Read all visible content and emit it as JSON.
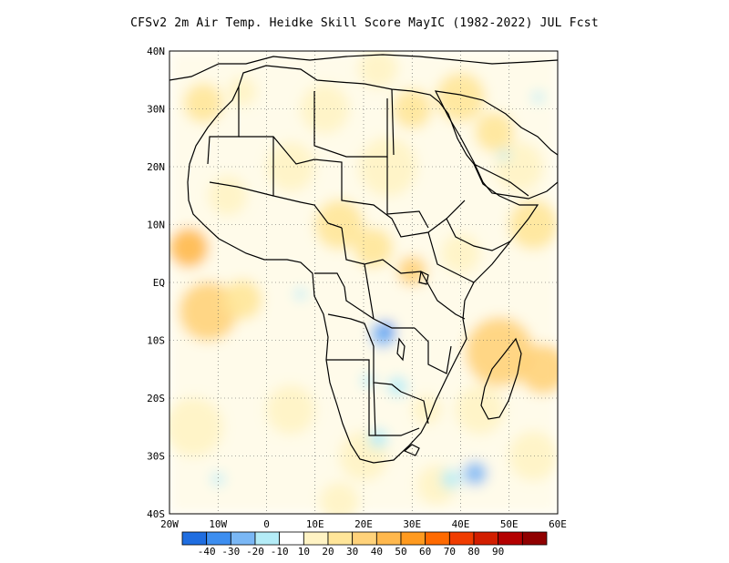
{
  "title": "CFSv2 2m Air Temp. Heidke Skill Score MayIC (1982-2022) JUL Fcst",
  "map": {
    "region": "Africa",
    "lon_range": [
      -20,
      60
    ],
    "lat_range": [
      -40,
      40
    ],
    "gridlines": "dotted",
    "y_ticks": [
      "40N",
      "30N",
      "20N",
      "10N",
      "EQ",
      "10S",
      "20S",
      "30S",
      "40S"
    ],
    "x_ticks": [
      "20W",
      "10W",
      "0",
      "10E",
      "20E",
      "30E",
      "40E",
      "50E",
      "60E"
    ]
  },
  "colorbar": {
    "colors": [
      "#1f6de0",
      "#3d8ef0",
      "#7ab7f5",
      "#b4ecf7",
      "#ffffff",
      "#fff3c4",
      "#ffe599",
      "#ffd27a",
      "#ffb84d",
      "#ff9a1f",
      "#ff6a00",
      "#f03c00",
      "#d21e00",
      "#b40000",
      "#900000"
    ],
    "labels": [
      "-40",
      "-30",
      "-20",
      "-10",
      "10",
      "20",
      "30",
      "40",
      "50",
      "60",
      "70",
      "80",
      "90"
    ]
  },
  "patches": [
    {
      "lon": -13,
      "lat": 31,
      "r": 4,
      "level": 2
    },
    {
      "lon": -5,
      "lat": 33,
      "r": 3,
      "level": 1
    },
    {
      "lon": 12,
      "lat": 30,
      "r": 5,
      "level": 1
    },
    {
      "lon": 23,
      "lat": 37,
      "r": 4,
      "level": 1
    },
    {
      "lon": 40,
      "lat": 32,
      "r": 5,
      "level": 2
    },
    {
      "lon": 47,
      "lat": 26,
      "r": 4,
      "level": 2
    },
    {
      "lon": 52,
      "lat": 20,
      "r": 5,
      "level": 1
    },
    {
      "lon": 55,
      "lat": 10,
      "r": 5,
      "level": 2
    },
    {
      "lon": -16,
      "lat": 6,
      "r": 4,
      "level": 4
    },
    {
      "lon": -12,
      "lat": -5,
      "r": 6,
      "level": 3
    },
    {
      "lon": -5,
      "lat": -3,
      "r": 4,
      "level": 2
    },
    {
      "lon": 15,
      "lat": 10,
      "r": 5,
      "level": 2
    },
    {
      "lon": 22,
      "lat": 6,
      "r": 4,
      "level": 2
    },
    {
      "lon": 30,
      "lat": 2,
      "r": 3,
      "level": 3
    },
    {
      "lon": 40,
      "lat": 5,
      "r": 4,
      "level": 1
    },
    {
      "lon": 48,
      "lat": -12,
      "r": 7,
      "level": 3
    },
    {
      "lon": 57,
      "lat": -15,
      "r": 5,
      "level": 3
    },
    {
      "lon": 44,
      "lat": -22,
      "r": 5,
      "level": 1
    },
    {
      "lon": 33,
      "lat": -22,
      "r": 3,
      "level": 1
    },
    {
      "lon": 20,
      "lat": -30,
      "r": 5,
      "level": 1
    },
    {
      "lon": 5,
      "lat": -22,
      "r": 5,
      "level": 1
    },
    {
      "lon": -15,
      "lat": -25,
      "r": 6,
      "level": 1
    },
    {
      "lon": 25,
      "lat": 20,
      "r": 6,
      "level": 1
    },
    {
      "lon": 5,
      "lat": 20,
      "r": 5,
      "level": 1
    },
    {
      "lon": -8,
      "lat": 15,
      "r": 4,
      "level": 1
    },
    {
      "lon": 30,
      "lat": 30,
      "r": 4,
      "level": 2
    },
    {
      "lon": 15,
      "lat": -38,
      "r": 4,
      "level": 1
    },
    {
      "lon": 55,
      "lat": -30,
      "r": 5,
      "level": 1
    },
    {
      "lon": 35,
      "lat": -35,
      "r": 4,
      "level": 1
    }
  ],
  "neg_patches": [
    {
      "lon": 24,
      "lat": -9,
      "r": 2.6,
      "level": -2
    },
    {
      "lon": 25,
      "lat": -8,
      "r": 1.4,
      "level": -3
    },
    {
      "lon": 27,
      "lat": -18,
      "r": 2,
      "level": -1
    },
    {
      "lon": 23,
      "lat": -27,
      "r": 2,
      "level": -1
    },
    {
      "lon": 43,
      "lat": -33,
      "r": 2.4,
      "level": -2
    },
    {
      "lon": 38,
      "lat": -34,
      "r": 2,
      "level": -1
    },
    {
      "lon": 7,
      "lat": -2,
      "r": 1.2,
      "level": -1
    },
    {
      "lon": -10,
      "lat": -34,
      "r": 1.3,
      "level": -1
    },
    {
      "lon": 56,
      "lat": 32,
      "r": 1.2,
      "level": -1
    },
    {
      "lon": 49,
      "lat": 22,
      "r": 1.1,
      "level": -1
    },
    {
      "lon": 21,
      "lat": -17,
      "r": 1.4,
      "level": -1
    }
  ]
}
